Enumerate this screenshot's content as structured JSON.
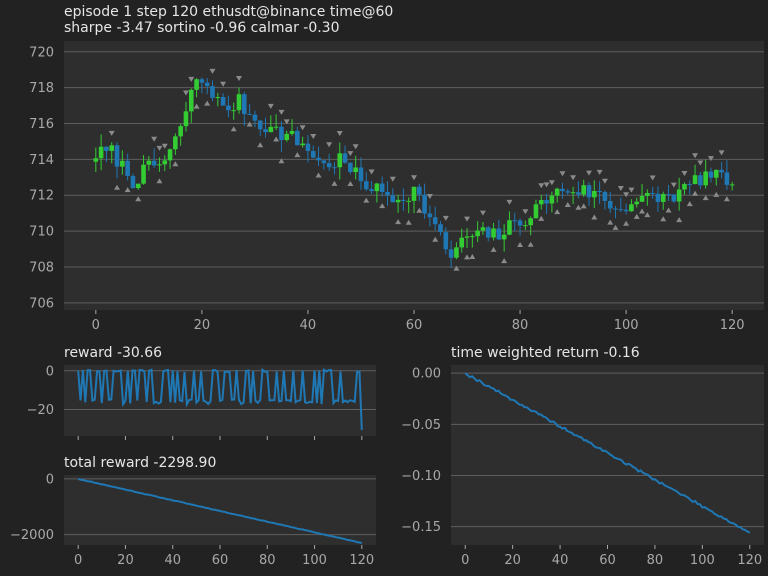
{
  "header": {
    "title_line1": "episode 1 step 120 ethusdt@binance time@60",
    "title_line2": "sharpe -3.47 sortino -0.96 calmar -0.30"
  },
  "colors": {
    "background": "#222222",
    "axes_bg": "#2e2e2e",
    "grid": "#5e5e5e",
    "text": "#e6e6e6",
    "tick_text": "#a8a8a8",
    "bull": "#33cc33",
    "bear": "#1f77b4",
    "line": "#1f77b4",
    "marker": "#8a8a8a"
  },
  "chart_data": [
    {
      "id": "price",
      "type": "candlestick",
      "title": "",
      "xlim": [
        -6,
        126
      ],
      "ylim": [
        705.6,
        720.6
      ],
      "xticks": [
        0,
        20,
        40,
        60,
        80,
        100,
        120
      ],
      "yticks": [
        706,
        708,
        710,
        712,
        714,
        716,
        718,
        720
      ],
      "grid": true,
      "anchors": [
        [
          0,
          714.3
        ],
        [
          3,
          714.4
        ],
        [
          5,
          713.6
        ],
        [
          7,
          712.8
        ],
        [
          10,
          713.5
        ],
        [
          13,
          713.9
        ],
        [
          16,
          715.6
        ],
        [
          18,
          717.9
        ],
        [
          20,
          718.4
        ],
        [
          22,
          717.8
        ],
        [
          24,
          716.7
        ],
        [
          27,
          717.2
        ],
        [
          30,
          716.2
        ],
        [
          33,
          715.7
        ],
        [
          37,
          715.2
        ],
        [
          40,
          714.6
        ],
        [
          43,
          713.6
        ],
        [
          46,
          714.0
        ],
        [
          50,
          712.8
        ],
        [
          54,
          712.1
        ],
        [
          57,
          711.8
        ],
        [
          60,
          712.3
        ],
        [
          62,
          711.3
        ],
        [
          65,
          709.6
        ],
        [
          67,
          708.6
        ],
        [
          70,
          709.7
        ],
        [
          73,
          709.8
        ],
        [
          76,
          709.8
        ],
        [
          79,
          710.4
        ],
        [
          82,
          710.9
        ],
        [
          85,
          711.8
        ],
        [
          88,
          712.3
        ],
        [
          91,
          712.3
        ],
        [
          95,
          712.0
        ],
        [
          98,
          711.2
        ],
        [
          101,
          711.6
        ],
        [
          104,
          711.8
        ],
        [
          107,
          711.9
        ],
        [
          110,
          712.1
        ],
        [
          113,
          712.8
        ],
        [
          115,
          713.1
        ],
        [
          118,
          712.9
        ],
        [
          120,
          712.8
        ]
      ],
      "markers": {
        "sell_above": [
          3,
          11,
          12,
          13,
          17,
          18,
          22,
          24,
          27,
          33,
          35,
          36,
          39,
          41,
          44,
          46,
          48,
          49,
          52,
          56,
          60,
          63,
          66,
          70,
          73,
          78,
          81,
          84,
          85,
          86,
          88,
          90,
          93,
          95,
          96,
          99,
          100,
          101,
          105,
          109,
          111,
          113,
          114,
          116,
          118
        ],
        "buy_below": [
          4,
          6,
          8,
          12,
          15,
          19,
          21,
          26,
          29,
          31,
          34,
          35,
          38,
          42,
          45,
          48,
          51,
          54,
          57,
          59,
          61,
          64,
          68,
          70,
          71,
          75,
          77,
          80,
          82,
          84,
          87,
          89,
          91,
          92,
          94,
          97,
          98,
          100,
          102,
          103,
          104,
          107,
          108,
          110,
          112,
          113,
          115,
          117,
          119
        ]
      }
    },
    {
      "id": "reward",
      "type": "line",
      "title": "reward -30.66",
      "xlim": [
        -6,
        126
      ],
      "ylim": [
        -33.7,
        3.0
      ],
      "xticks": [
        0,
        20,
        40,
        60,
        80,
        100,
        120
      ],
      "yticks": [
        0,
        -20
      ],
      "ytick_labels": [
        "0",
        "−20"
      ],
      "grid": true,
      "series": [
        {
          "x_start": 0,
          "x_end": 120,
          "alternating_levels": [
            0,
            -16
          ],
          "final_value": -30.66
        }
      ]
    },
    {
      "id": "total_reward",
      "type": "line",
      "title": "total reward -2298.90",
      "xlim": [
        -6,
        126
      ],
      "ylim": [
        -2370,
        140
      ],
      "xticks": [
        0,
        20,
        40,
        60,
        80,
        100,
        120
      ],
      "xtick_labels": [
        "0",
        "20",
        "40",
        "60",
        "80",
        "100",
        "120"
      ],
      "yticks": [
        0,
        -2000
      ],
      "ytick_labels": [
        "0",
        "−2000"
      ],
      "grid": true,
      "series": [
        {
          "x_start": 0,
          "x_end": 120,
          "y_start": 0,
          "y_end": -2298.9
        }
      ]
    },
    {
      "id": "twr",
      "type": "line",
      "title": "time weighted return -0.16",
      "xlim": [
        -6,
        126
      ],
      "ylim": [
        -0.168,
        0.008
      ],
      "xticks": [
        0,
        20,
        40,
        60,
        80,
        100,
        120
      ],
      "xtick_labels": [
        "0",
        "20",
        "40",
        "60",
        "80",
        "100",
        "120"
      ],
      "yticks": [
        0.0,
        -0.05,
        -0.1,
        -0.15
      ],
      "ytick_labels": [
        "0.00",
        "−0.05",
        "−0.10",
        "−0.15"
      ],
      "grid": true,
      "series": [
        {
          "x_start": 0,
          "x_end": 120,
          "y_start": 0.0,
          "y_end": -0.156
        }
      ]
    }
  ]
}
